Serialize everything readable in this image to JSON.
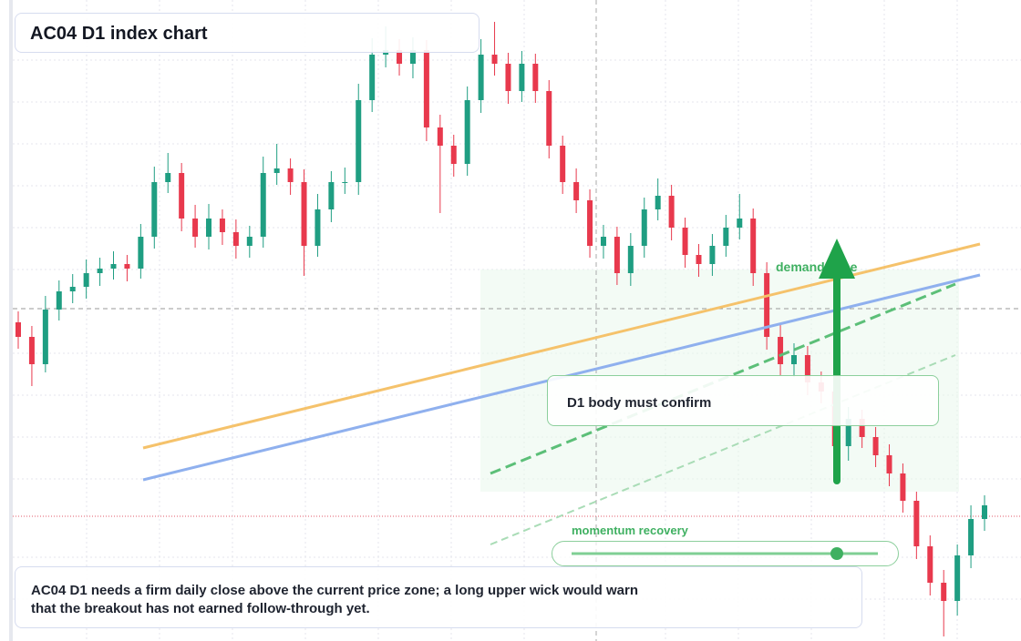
{
  "chart_data": {
    "type": "candlestick",
    "title": "AC04 D1 index chart",
    "annotations": [
      "D1 body must confirm",
      "demand zone",
      "momentum recovery"
    ],
    "note": [
      "AC04 D1 needs a firm daily close above the current price zone; a long upper wick would warn",
      "that the breakout has not earned follow-through yet."
    ],
    "ylim": [
      0,
      70.4
    ],
    "up_color": "#1f9e82",
    "down_color": "#e8394d",
    "open": [
      35.0,
      33.4,
      30.4,
      36.4,
      38.4,
      38.9,
      40.4,
      40.9,
      41.4,
      40.9,
      44.4,
      50.4,
      51.4,
      46.4,
      44.4,
      46.4,
      44.9,
      43.4,
      44.4,
      51.4,
      51.9,
      50.4,
      43.4,
      47.4,
      50.4,
      50.4,
      59.4,
      64.4,
      64.9,
      63.4,
      64.9,
      56.4,
      54.4,
      52.4,
      59.4,
      64.4,
      63.4,
      60.4,
      63.4,
      60.4,
      54.4,
      50.4,
      48.4,
      43.4,
      44.4,
      40.4,
      43.4,
      47.4,
      48.9,
      45.4,
      42.4,
      41.4,
      43.4,
      45.4,
      46.4,
      40.4,
      33.4,
      30.4,
      31.4,
      28.4,
      27.4,
      21.4,
      24.4,
      22.4,
      20.4,
      18.4,
      15.4,
      10.4,
      6.4,
      4.4,
      9.4,
      13.4
    ],
    "high": [
      36.2,
      34.6,
      37.9,
      39.6,
      40.3,
      41.9,
      42.1,
      42.8,
      42.4,
      45.8,
      52.1,
      53.6,
      52.5,
      47.9,
      48.0,
      47.4,
      46.3,
      45.6,
      53.2,
      54.6,
      53.0,
      51.8,
      49.1,
      51.6,
      52.0,
      61.2,
      66.2,
      67.5,
      66.1,
      66.3,
      66.0,
      57.8,
      55.6,
      60.9,
      66.1,
      68.0,
      64.6,
      64.8,
      64.5,
      61.6,
      55.5,
      51.9,
      49.6,
      45.7,
      45.5,
      44.8,
      48.7,
      50.8,
      50.1,
      46.5,
      43.6,
      44.7,
      46.8,
      49.1,
      47.5,
      41.6,
      34.8,
      32.7,
      32.4,
      29.6,
      28.5,
      25.7,
      25.4,
      23.5,
      21.6,
      19.5,
      16.4,
      11.6,
      7.8,
      10.6,
      14.9,
      16.0
    ],
    "low": [
      32.1,
      28.0,
      29.5,
      35.2,
      37.1,
      37.6,
      39.0,
      39.7,
      39.5,
      39.8,
      43.1,
      49.2,
      45.0,
      43.2,
      43.0,
      43.5,
      42.0,
      42.1,
      43.2,
      50.1,
      49.0,
      40.1,
      42.2,
      46.0,
      49.1,
      49.0,
      58.1,
      63.0,
      62.1,
      61.8,
      54.9,
      47.0,
      51.0,
      51.1,
      58.0,
      62.1,
      59.0,
      59.2,
      59.1,
      53.0,
      49.1,
      47.0,
      42.1,
      42.0,
      39.1,
      39.0,
      42.1,
      46.2,
      44.0,
      41.0,
      40.0,
      40.1,
      42.2,
      44.1,
      39.0,
      32.0,
      29.1,
      29.0,
      27.0,
      26.1,
      20.0,
      19.8,
      21.2,
      19.1,
      17.0,
      14.1,
      9.0,
      5.0,
      0.5,
      2.8,
      8.0,
      12.1
    ],
    "close": [
      33.4,
      30.4,
      36.4,
      38.4,
      38.9,
      40.4,
      40.9,
      41.4,
      40.9,
      44.4,
      50.4,
      51.4,
      46.4,
      44.4,
      46.4,
      44.9,
      43.4,
      44.4,
      51.4,
      51.9,
      50.4,
      43.4,
      47.4,
      50.4,
      50.4,
      59.4,
      64.4,
      64.9,
      63.4,
      64.9,
      56.4,
      54.4,
      52.4,
      59.4,
      64.4,
      63.4,
      60.4,
      63.4,
      60.4,
      54.4,
      50.4,
      48.4,
      43.4,
      44.4,
      40.4,
      43.4,
      47.4,
      48.9,
      45.4,
      42.4,
      41.4,
      43.4,
      45.4,
      46.4,
      40.4,
      33.4,
      30.4,
      31.4,
      28.4,
      27.4,
      21.4,
      24.4,
      22.4,
      20.4,
      18.4,
      15.4,
      10.4,
      6.4,
      4.4,
      9.4,
      13.4,
      14.9
    ]
  }
}
